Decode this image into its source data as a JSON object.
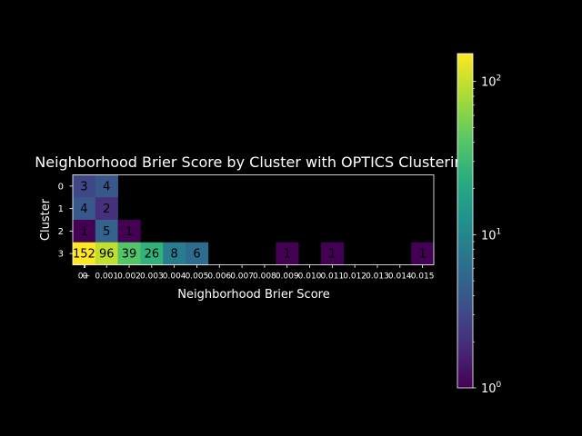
{
  "chart_data": {
    "type": "heatmap",
    "title": "Neighborhood Brier Score by Cluster with OPTICS Clustering",
    "xlabel": "Neighborhood Brier Score",
    "ylabel": "Cluster",
    "x_tick_labels": [
      "0",
      "0+",
      "0.001",
      "0.002",
      "0.003",
      "0.004",
      "0.005",
      "0.006",
      "0.007",
      "0.008",
      "0.009",
      "0.010",
      "0.011",
      "0.012",
      "0.013",
      "0.014",
      "0.015"
    ],
    "y_tick_labels": [
      "0",
      "1",
      "2",
      "3"
    ],
    "cells": [
      {
        "cluster": "0",
        "col": 1,
        "value": 3
      },
      {
        "cluster": "0",
        "col": 2,
        "value": 4
      },
      {
        "cluster": "1",
        "col": 1,
        "value": 4
      },
      {
        "cluster": "1",
        "col": 2,
        "value": 2
      },
      {
        "cluster": "2",
        "col": 1,
        "value": 1
      },
      {
        "cluster": "2",
        "col": 2,
        "value": 5
      },
      {
        "cluster": "2",
        "col": 3,
        "value": 1
      },
      {
        "cluster": "3",
        "col": 1,
        "value": 152
      },
      {
        "cluster": "3",
        "col": 2,
        "value": 96
      },
      {
        "cluster": "3",
        "col": 3,
        "value": 39
      },
      {
        "cluster": "3",
        "col": 4,
        "value": 26
      },
      {
        "cluster": "3",
        "col": 5,
        "value": 8
      },
      {
        "cluster": "3",
        "col": 6,
        "value": 6
      },
      {
        "cluster": "3",
        "col": 10,
        "value": 1
      },
      {
        "cluster": "3",
        "col": 12,
        "value": 1
      },
      {
        "cluster": "3",
        "col": 16,
        "value": 1
      }
    ],
    "colorbar": {
      "scale": "log",
      "range": [
        1,
        152
      ],
      "colormap": "viridis",
      "tick_labels": [
        "10^0",
        "10^1",
        "10^2"
      ]
    },
    "colors": {
      "background": "#000000",
      "foreground": "#ffffff",
      "cell_text": "#000000"
    }
  }
}
